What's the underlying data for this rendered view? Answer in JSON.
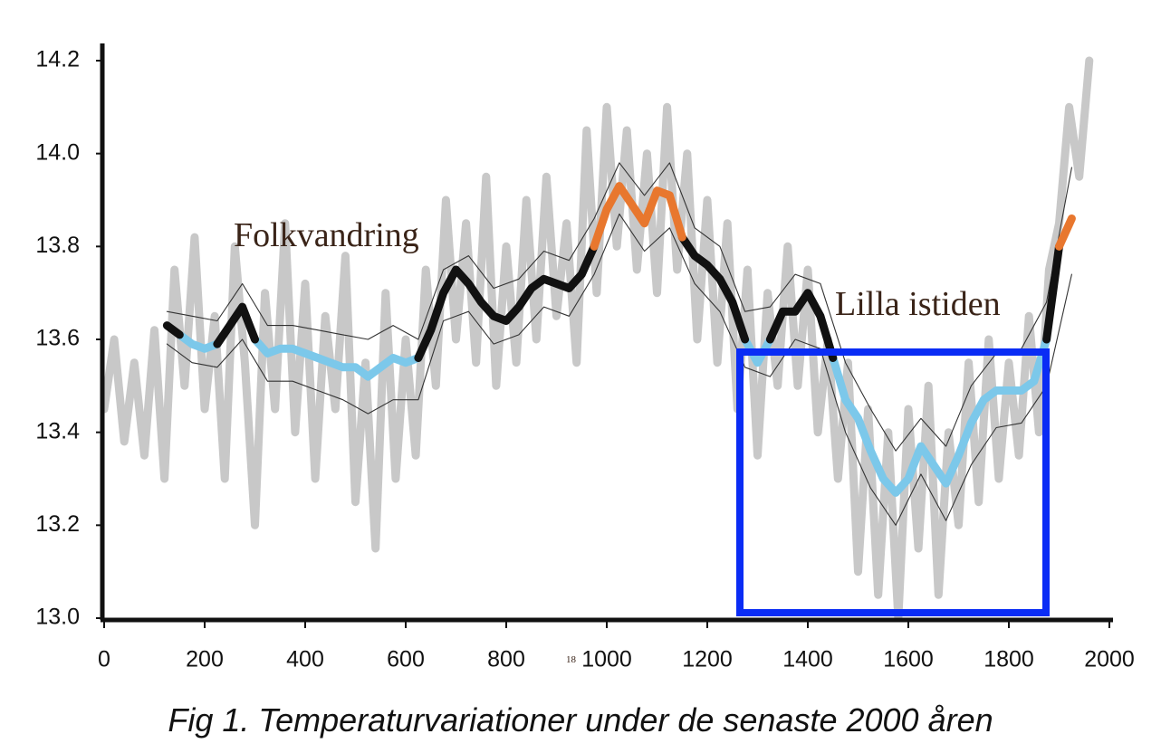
{
  "chart_data": {
    "type": "line",
    "caption": "Fig 1. Temperaturvariationer under de senaste 2000 åren",
    "annotations": [
      "Folkvandring",
      "Lilla istiden",
      "18"
    ],
    "xlim": [
      0,
      2000
    ],
    "ylim": [
      13.0,
      14.2
    ],
    "xticks": [
      0,
      200,
      400,
      600,
      800,
      1000,
      1200,
      1400,
      1600,
      1800,
      2000
    ],
    "yticks": [
      {
        "value": 13.0,
        "label": "13.0"
      },
      13.2,
      13.4,
      13.6,
      13.8,
      {
        "value": 14.0,
        "label": "14.0"
      },
      14.2
    ],
    "grid": false,
    "legend": false,
    "series": [
      {
        "color": "#c8c8c8",
        "x": [
          0,
          20,
          40,
          60,
          80,
          100,
          120,
          140,
          160,
          180,
          200,
          220,
          240,
          260,
          280,
          300,
          320,
          340,
          360,
          380,
          400,
          420,
          440,
          460,
          480,
          500,
          520,
          540,
          560,
          580,
          600,
          620,
          640,
          660,
          680,
          700,
          720,
          740,
          760,
          780,
          800,
          820,
          840,
          860,
          880,
          900,
          920,
          940,
          960,
          980,
          1000,
          1020,
          1040,
          1060,
          1080,
          1100,
          1120,
          1140,
          1160,
          1180,
          1200,
          1220,
          1240,
          1260,
          1280,
          1300,
          1320,
          1340,
          1360,
          1380,
          1400,
          1420,
          1440,
          1460,
          1480,
          1500,
          1520,
          1540,
          1560,
          1580,
          1600,
          1620,
          1640,
          1660,
          1680,
          1700,
          1720,
          1740,
          1760,
          1780,
          1800,
          1820,
          1840,
          1860,
          1880,
          1900,
          1920,
          1940,
          1960
        ],
        "values": [
          13.45,
          13.6,
          13.38,
          13.55,
          13.35,
          13.62,
          13.3,
          13.75,
          13.5,
          13.82,
          13.45,
          13.65,
          13.3,
          13.8,
          13.55,
          13.2,
          13.7,
          13.45,
          13.85,
          13.4,
          13.72,
          13.3,
          13.65,
          13.45,
          13.78,
          13.25,
          13.55,
          13.15,
          13.7,
          13.3,
          13.6,
          13.35,
          13.75,
          13.5,
          13.9,
          13.6,
          13.85,
          13.55,
          13.95,
          13.5,
          13.8,
          13.55,
          13.9,
          13.6,
          13.95,
          13.65,
          13.85,
          13.55,
          14.05,
          13.7,
          14.1,
          13.8,
          14.05,
          13.75,
          14.0,
          13.7,
          14.1,
          13.75,
          14.0,
          13.6,
          13.9,
          13.55,
          13.85,
          13.45,
          13.75,
          13.35,
          13.7,
          13.5,
          13.8,
          13.5,
          13.75,
          13.4,
          13.6,
          13.3,
          13.55,
          13.1,
          13.45,
          13.05,
          13.4,
          13.0,
          13.45,
          13.15,
          13.5,
          13.05,
          13.4,
          13.2,
          13.55,
          13.25,
          13.6,
          13.3,
          13.55,
          13.35,
          13.65,
          13.4,
          13.75,
          13.85,
          14.1,
          13.95,
          14.2
        ]
      },
      {
        "color": "#333333",
        "x": [
          125,
          175,
          225,
          275,
          325,
          375,
          425,
          475,
          525,
          575,
          625,
          675,
          725,
          775,
          825,
          875,
          925,
          975,
          1025,
          1075,
          1125,
          1175,
          1225,
          1275,
          1325,
          1375,
          1425,
          1475,
          1525,
          1575,
          1625,
          1675,
          1725,
          1775,
          1825,
          1875,
          1925
        ],
        "values": [
          13.66,
          13.65,
          13.64,
          13.72,
          13.63,
          13.63,
          13.62,
          13.61,
          13.6,
          13.63,
          13.6,
          13.75,
          13.78,
          13.71,
          13.73,
          13.79,
          13.77,
          13.86,
          13.98,
          13.91,
          13.98,
          13.84,
          13.8,
          13.66,
          13.67,
          13.74,
          13.72,
          13.55,
          13.45,
          13.36,
          13.43,
          13.37,
          13.5,
          13.57,
          13.58,
          13.68,
          13.97
        ]
      },
      {
        "color": "#333333",
        "x": [
          125,
          175,
          225,
          275,
          325,
          375,
          425,
          475,
          525,
          575,
          625,
          675,
          725,
          775,
          825,
          875,
          925,
          975,
          1025,
          1075,
          1125,
          1175,
          1225,
          1275,
          1325,
          1375,
          1425,
          1475,
          1525,
          1575,
          1625,
          1675,
          1725,
          1775,
          1825,
          1875,
          1925
        ],
        "values": [
          13.59,
          13.55,
          13.54,
          13.6,
          13.51,
          13.51,
          13.49,
          13.47,
          13.44,
          13.47,
          13.47,
          13.64,
          13.66,
          13.59,
          13.61,
          13.67,
          13.65,
          13.74,
          13.87,
          13.79,
          13.84,
          13.72,
          13.66,
          13.54,
          13.52,
          13.6,
          13.58,
          13.4,
          13.28,
          13.2,
          13.31,
          13.21,
          13.33,
          13.41,
          13.42,
          13.5,
          13.74
        ]
      },
      {
        "color": "#7cc8ea",
        "x": [
          125,
          150,
          175,
          200,
          225,
          250,
          275,
          300,
          325,
          350,
          375,
          400,
          425,
          450,
          475,
          500,
          525,
          550,
          575,
          600,
          625,
          650,
          675,
          700,
          725,
          750,
          775,
          800,
          825,
          850,
          875,
          900,
          925,
          950,
          975,
          1000,
          1025,
          1050,
          1075,
          1100,
          1125,
          1150,
          1175,
          1200,
          1225,
          1250,
          1275,
          1300,
          1325,
          1350,
          1375,
          1400,
          1425,
          1450,
          1475,
          1500,
          1525,
          1550,
          1575,
          1600,
          1625,
          1650,
          1675,
          1700,
          1725,
          1750,
          1775,
          1800,
          1825,
          1850,
          1875,
          1900,
          1925
        ],
        "values": [
          null,
          13.61,
          13.59,
          13.58,
          13.59,
          null,
          null,
          13.6,
          13.57,
          13.58,
          13.58,
          13.57,
          13.56,
          13.55,
          13.54,
          13.54,
          13.52,
          13.54,
          13.56,
          13.55,
          13.56,
          null,
          null,
          null,
          null,
          null,
          null,
          null,
          null,
          null,
          null,
          null,
          null,
          null,
          null,
          null,
          null,
          null,
          null,
          null,
          null,
          null,
          null,
          null,
          null,
          null,
          13.6,
          13.55,
          13.6,
          null,
          null,
          null,
          null,
          13.56,
          13.47,
          13.43,
          13.36,
          13.3,
          13.27,
          13.3,
          13.37,
          13.33,
          13.29,
          13.35,
          13.42,
          13.47,
          13.49,
          13.49,
          13.49,
          13.51,
          13.6,
          null,
          null
        ]
      },
      {
        "color": "#111111",
        "x": [
          125,
          150,
          175,
          200,
          225,
          250,
          275,
          300,
          325,
          350,
          375,
          400,
          425,
          450,
          475,
          500,
          525,
          550,
          575,
          600,
          625,
          650,
          675,
          700,
          725,
          750,
          775,
          800,
          825,
          850,
          875,
          900,
          925,
          950,
          975,
          1000,
          1025,
          1050,
          1075,
          1100,
          1125,
          1150,
          1175,
          1200,
          1225,
          1250,
          1275,
          1300,
          1325,
          1350,
          1375,
          1400,
          1425,
          1450,
          1475,
          1500,
          1525,
          1550,
          1575,
          1600,
          1625,
          1650,
          1675,
          1700,
          1725,
          1750,
          1775,
          1800,
          1825,
          1850,
          1875,
          1900,
          1925
        ],
        "values": [
          13.63,
          13.61,
          null,
          null,
          13.59,
          13.63,
          13.67,
          13.6,
          null,
          null,
          null,
          null,
          null,
          null,
          null,
          null,
          null,
          null,
          null,
          null,
          13.56,
          13.62,
          13.7,
          13.75,
          13.72,
          13.68,
          13.65,
          13.64,
          13.67,
          13.71,
          13.73,
          13.72,
          13.71,
          13.74,
          13.8,
          null,
          null,
          null,
          null,
          null,
          null,
          13.82,
          13.78,
          13.76,
          13.73,
          13.68,
          13.6,
          null,
          13.6,
          13.66,
          13.66,
          13.7,
          13.65,
          13.56,
          null,
          null,
          null,
          null,
          null,
          null,
          null,
          null,
          null,
          null,
          null,
          null,
          null,
          null,
          null,
          null,
          13.6,
          13.8,
          null
        ]
      },
      {
        "color": "#e8772e",
        "x": [
          125,
          150,
          175,
          200,
          225,
          250,
          275,
          300,
          325,
          350,
          375,
          400,
          425,
          450,
          475,
          500,
          525,
          550,
          575,
          600,
          625,
          650,
          675,
          700,
          725,
          750,
          775,
          800,
          825,
          850,
          875,
          900,
          925,
          950,
          975,
          1000,
          1025,
          1050,
          1075,
          1100,
          1125,
          1150,
          1175,
          1200,
          1225,
          1250,
          1275,
          1300,
          1325,
          1350,
          1375,
          1400,
          1425,
          1450,
          1475,
          1500,
          1525,
          1550,
          1575,
          1600,
          1625,
          1650,
          1675,
          1700,
          1725,
          1750,
          1775,
          1800,
          1825,
          1850,
          1875,
          1900,
          1925
        ],
        "values": [
          null,
          null,
          null,
          null,
          null,
          null,
          null,
          null,
          null,
          null,
          null,
          null,
          null,
          null,
          null,
          null,
          null,
          null,
          null,
          null,
          null,
          null,
          null,
          null,
          null,
          null,
          null,
          null,
          null,
          null,
          null,
          null,
          null,
          null,
          13.8,
          13.88,
          13.93,
          13.89,
          13.85,
          13.92,
          13.91,
          13.82,
          null,
          null,
          null,
          null,
          null,
          null,
          null,
          null,
          null,
          null,
          null,
          null,
          null,
          null,
          null,
          null,
          null,
          null,
          null,
          null,
          null,
          null,
          null,
          null,
          null,
          null,
          null,
          null,
          null,
          13.8,
          13.86
        ]
      }
    ]
  }
}
